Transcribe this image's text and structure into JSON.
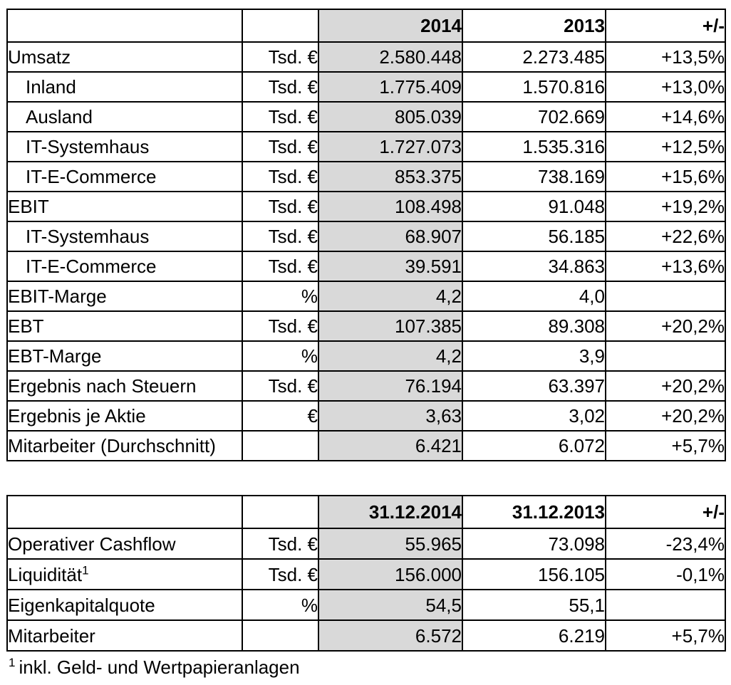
{
  "colors": {
    "highlight_column": "#d9d9d9",
    "border": "#000000",
    "text": "#000000",
    "page_background": "#ffffff"
  },
  "table1": {
    "header": {
      "label": "",
      "unit": "",
      "y2014": "2014",
      "y2013": "2013",
      "delta": "+/-"
    },
    "rows": [
      {
        "label": "Umsatz",
        "unit": "Tsd. €",
        "y2014": "2.580.448",
        "y2013": "2.273.485",
        "delta": "+13,5%"
      },
      {
        "label": "Inland",
        "unit": "Tsd. €",
        "y2014": "1.775.409",
        "y2013": "1.570.816",
        "delta": "+13,0%"
      },
      {
        "label": "Ausland",
        "unit": "Tsd. €",
        "y2014": "805.039",
        "y2013": "702.669",
        "delta": "+14,6%"
      },
      {
        "label": "IT-Systemhaus",
        "unit": "Tsd. €",
        "y2014": "1.727.073",
        "y2013": "1.535.316",
        "delta": "+12,5%"
      },
      {
        "label": "IT-E-Commerce",
        "unit": "Tsd. €",
        "y2014": "853.375",
        "y2013": "738.169",
        "delta": "+15,6%"
      },
      {
        "label": "EBIT",
        "unit": "Tsd. €",
        "y2014": "108.498",
        "y2013": "91.048",
        "delta": "+19,2%"
      },
      {
        "label": "IT-Systemhaus",
        "unit": "Tsd. €",
        "y2014": "68.907",
        "y2013": "56.185",
        "delta": "+22,6%"
      },
      {
        "label": "IT-E-Commerce",
        "unit": "Tsd. €",
        "y2014": "39.591",
        "y2013": "34.863",
        "delta": "+13,6%"
      },
      {
        "label": "EBIT-Marge",
        "unit": "%",
        "y2014": "4,2",
        "y2013": "4,0",
        "delta": ""
      },
      {
        "label": "EBT",
        "unit": "Tsd. €",
        "y2014": "107.385",
        "y2013": "89.308",
        "delta": "+20,2%"
      },
      {
        "label": "EBT-Marge",
        "unit": "%",
        "y2014": "4,2",
        "y2013": "3,9",
        "delta": ""
      },
      {
        "label": "Ergebnis nach Steuern",
        "unit": "Tsd. €",
        "y2014": "76.194",
        "y2013": "63.397",
        "delta": "+20,2%"
      },
      {
        "label": "Ergebnis je Aktie",
        "unit": "€",
        "y2014": "3,63",
        "y2013": "3,02",
        "delta": "+20,2%"
      },
      {
        "label": "Mitarbeiter (Durchschnitt)",
        "unit": "",
        "y2014": "6.421",
        "y2013": "6.072",
        "delta": "+5,7%"
      }
    ]
  },
  "table2": {
    "header": {
      "label": "",
      "unit": "",
      "y2014": "31.12.2014",
      "y2013": "31.12.2013",
      "delta": "+/-"
    },
    "rows": [
      {
        "label": "Operativer Cashflow",
        "sup": "",
        "unit": "Tsd. €",
        "y2014": "55.965",
        "y2013": "73.098",
        "delta": "-23,4%"
      },
      {
        "label": "Liquidität",
        "sup": "1",
        "unit": "Tsd. €",
        "y2014": "156.000",
        "y2013": "156.105",
        "delta": "-0,1%"
      },
      {
        "label": "Eigenkapitalquote",
        "sup": "",
        "unit": "%",
        "y2014": "54,5",
        "y2013": "55,1",
        "delta": ""
      },
      {
        "label": "Mitarbeiter",
        "sup": "",
        "unit": "",
        "y2014": "6.572",
        "y2013": "6.219",
        "delta": "+5,7%"
      }
    ]
  },
  "footnote": {
    "marker": "1",
    "text": "inkl. Geld- und Wertpapieranlagen"
  }
}
